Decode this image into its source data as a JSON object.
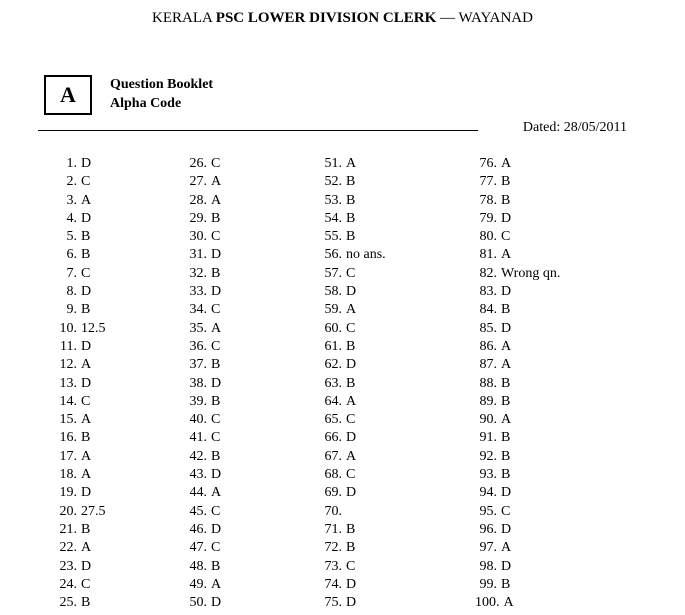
{
  "header": {
    "prefix": "KERALA ",
    "bold": "PSC LOWER DIVISION CLERK",
    "suffix": " — WAYANAD"
  },
  "alpha": {
    "code": "A",
    "label_line1": "Question Booklet",
    "label_line2": "Alpha Code"
  },
  "dated": "Dated: 28/05/2011",
  "columns": [
    [
      {
        "n": "1.",
        "a": "D"
      },
      {
        "n": "2.",
        "a": "C"
      },
      {
        "n": "3.",
        "a": "A"
      },
      {
        "n": "4.",
        "a": "D"
      },
      {
        "n": "5.",
        "a": "B"
      },
      {
        "n": "6.",
        "a": "B"
      },
      {
        "n": "7.",
        "a": "C"
      },
      {
        "n": "8.",
        "a": "D"
      },
      {
        "n": "9.",
        "a": "B"
      },
      {
        "n": "10.",
        "a": "12.5"
      },
      {
        "n": "11.",
        "a": "D"
      },
      {
        "n": "12.",
        "a": "A"
      },
      {
        "n": "13.",
        "a": "D"
      },
      {
        "n": "14.",
        "a": "C"
      },
      {
        "n": "15.",
        "a": "A"
      },
      {
        "n": "16.",
        "a": "B"
      },
      {
        "n": "17.",
        "a": "A"
      },
      {
        "n": "18.",
        "a": "A"
      },
      {
        "n": "19.",
        "a": "D"
      },
      {
        "n": "20.",
        "a": "27.5"
      },
      {
        "n": "21.",
        "a": "B"
      },
      {
        "n": "22.",
        "a": "A"
      },
      {
        "n": "23.",
        "a": "D"
      },
      {
        "n": "24.",
        "a": "C"
      },
      {
        "n": "25.",
        "a": "B"
      }
    ],
    [
      {
        "n": "26.",
        "a": "C"
      },
      {
        "n": "27.",
        "a": "A"
      },
      {
        "n": "28.",
        "a": "A"
      },
      {
        "n": "29.",
        "a": "B"
      },
      {
        "n": "30.",
        "a": "C"
      },
      {
        "n": "31.",
        "a": "D"
      },
      {
        "n": "32.",
        "a": "B"
      },
      {
        "n": "33.",
        "a": "D"
      },
      {
        "n": "34.",
        "a": "C"
      },
      {
        "n": "35.",
        "a": "A"
      },
      {
        "n": "36.",
        "a": "C"
      },
      {
        "n": "37.",
        "a": "B"
      },
      {
        "n": "38.",
        "a": "D"
      },
      {
        "n": "39.",
        "a": "B"
      },
      {
        "n": "40.",
        "a": "C"
      },
      {
        "n": "41.",
        "a": "C"
      },
      {
        "n": "42.",
        "a": "B"
      },
      {
        "n": "43.",
        "a": "D"
      },
      {
        "n": "44.",
        "a": "A"
      },
      {
        "n": "45.",
        "a": "C"
      },
      {
        "n": "46.",
        "a": "D"
      },
      {
        "n": "47.",
        "a": "C"
      },
      {
        "n": "48.",
        "a": "B"
      },
      {
        "n": "49.",
        "a": "A"
      },
      {
        "n": "50.",
        "a": "D"
      }
    ],
    [
      {
        "n": "51.",
        "a": "A"
      },
      {
        "n": "52.",
        "a": "B"
      },
      {
        "n": "53.",
        "a": "B"
      },
      {
        "n": "54.",
        "a": "B"
      },
      {
        "n": "55.",
        "a": "B"
      },
      {
        "n": "56.",
        "a": "no ans."
      },
      {
        "n": "57.",
        "a": "C"
      },
      {
        "n": "58.",
        "a": "D"
      },
      {
        "n": "59.",
        "a": "A"
      },
      {
        "n": "60.",
        "a": "C"
      },
      {
        "n": "61.",
        "a": "B"
      },
      {
        "n": "62.",
        "a": "D"
      },
      {
        "n": "63.",
        "a": "B"
      },
      {
        "n": "64.",
        "a": "A"
      },
      {
        "n": "65.",
        "a": "C"
      },
      {
        "n": "66.",
        "a": "D"
      },
      {
        "n": "67.",
        "a": "A"
      },
      {
        "n": "68.",
        "a": "C"
      },
      {
        "n": "69.",
        "a": "D"
      },
      {
        "n": "70.",
        "a": ""
      },
      {
        "n": "71.",
        "a": "B"
      },
      {
        "n": "72.",
        "a": "B"
      },
      {
        "n": "73.",
        "a": "C"
      },
      {
        "n": "74.",
        "a": "D"
      },
      {
        "n": "75.",
        "a": "D"
      }
    ],
    [
      {
        "n": "76.",
        "a": "A"
      },
      {
        "n": "77.",
        "a": "B"
      },
      {
        "n": "78.",
        "a": "B"
      },
      {
        "n": "79.",
        "a": "D"
      },
      {
        "n": "80.",
        "a": "C"
      },
      {
        "n": "81.",
        "a": "A"
      },
      {
        "n": "82.",
        "a": "Wrong qn."
      },
      {
        "n": "83.",
        "a": "D"
      },
      {
        "n": "84.",
        "a": "B"
      },
      {
        "n": "85.",
        "a": "D"
      },
      {
        "n": "86.",
        "a": "A"
      },
      {
        "n": "87.",
        "a": "A"
      },
      {
        "n": "88.",
        "a": "B"
      },
      {
        "n": "89.",
        "a": "B"
      },
      {
        "n": "90.",
        "a": "A"
      },
      {
        "n": "91.",
        "a": "B"
      },
      {
        "n": "92.",
        "a": "B"
      },
      {
        "n": "93.",
        "a": "B"
      },
      {
        "n": "94.",
        "a": "D"
      },
      {
        "n": "95.",
        "a": "C"
      },
      {
        "n": "96.",
        "a": "D"
      },
      {
        "n": "97.",
        "a": "A"
      },
      {
        "n": "98.",
        "a": "D"
      },
      {
        "n": "99.",
        "a": "B"
      },
      {
        "n": "100.",
        "a": "A"
      }
    ]
  ]
}
